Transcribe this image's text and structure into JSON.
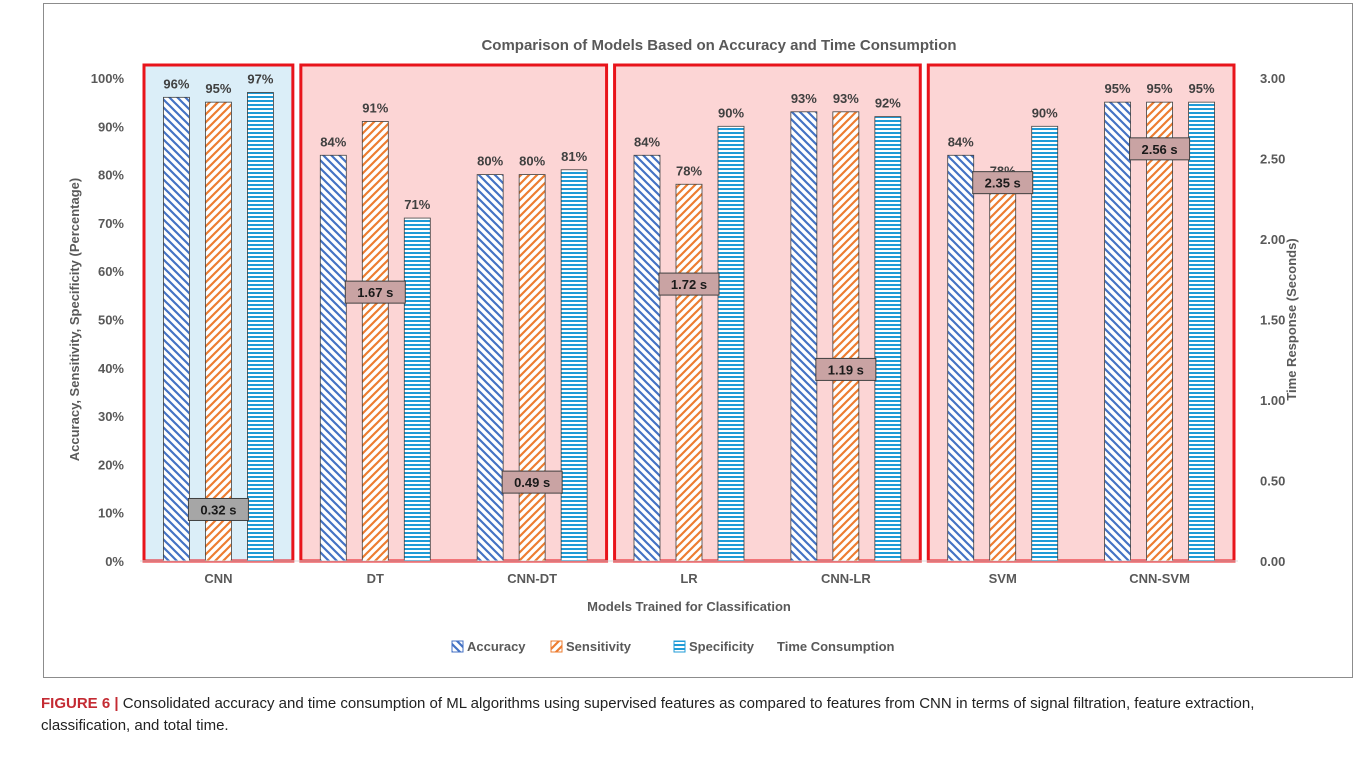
{
  "chart_data": {
    "type": "bar",
    "title": "Comparison of Models Based on Accuracy and Time Consumption",
    "xlabel": "Models Trained for Classification",
    "ylabel": "Accuracy, Sensitivity, Specificity (Percentage)",
    "y2label": "Time Response (Seconds)",
    "ylim": [
      0,
      100
    ],
    "y2lim": [
      0,
      3
    ],
    "yticks": [
      "0%",
      "10%",
      "20%",
      "30%",
      "40%",
      "50%",
      "60%",
      "70%",
      "80%",
      "90%",
      "100%"
    ],
    "y2ticks": [
      "0.00",
      "0.50",
      "1.00",
      "1.50",
      "2.00",
      "2.50",
      "3.00"
    ],
    "categories": [
      "CNN",
      "DT",
      "CNN-DT",
      "LR",
      "CNN-LR",
      "SVM",
      "CNN-SVM"
    ],
    "series": [
      {
        "name": "Accuracy",
        "values": [
          96,
          84,
          80,
          84,
          93,
          84,
          95
        ],
        "labels": [
          "96%",
          "84%",
          "80%",
          "84%",
          "93%",
          "84%",
          "95%"
        ],
        "color": "#4472c4"
      },
      {
        "name": "Sensitivity",
        "values": [
          95,
          91,
          80,
          78,
          93,
          78,
          95
        ],
        "labels": [
          "95%",
          "91%",
          "80%",
          "78%",
          "93%",
          "78%",
          "95%"
        ],
        "color": "#ed7d31"
      },
      {
        "name": "Specificity",
        "values": [
          97,
          71,
          81,
          90,
          92,
          90,
          95
        ],
        "labels": [
          "97%",
          "71%",
          "81%",
          "90%",
          "92%",
          "90%",
          "95%"
        ],
        "color": "#1f9bd7"
      }
    ],
    "time_series": {
      "name": "Time Consumption",
      "values": [
        0.32,
        1.67,
        0.49,
        1.72,
        1.19,
        2.35,
        2.56
      ],
      "labels": [
        "0.32 s",
        "1.67 s",
        "0.49 s",
        "1.72 s",
        "1.19 s",
        "2.35 s",
        "2.56 s"
      ]
    },
    "groups": [
      {
        "categories": [
          "CNN"
        ],
        "fill": "#dbeef8"
      },
      {
        "categories": [
          "DT",
          "CNN-DT"
        ],
        "fill": "#fcd5d5"
      },
      {
        "categories": [
          "LR",
          "CNN-LR"
        ],
        "fill": "#fcd5d5"
      },
      {
        "categories": [
          "SVM",
          "CNN-SVM"
        ],
        "fill": "#fcd5d5"
      }
    ],
    "group_border_color": "#e8141b",
    "legend_position": "bottom",
    "grid": false
  },
  "caption": {
    "label": "FIGURE 6 |",
    "text": " Consolidated accuracy and time consumption of ML algorithms using supervised features as compared to features from CNN in terms of signal filtration, feature extraction, classification, and total time."
  }
}
